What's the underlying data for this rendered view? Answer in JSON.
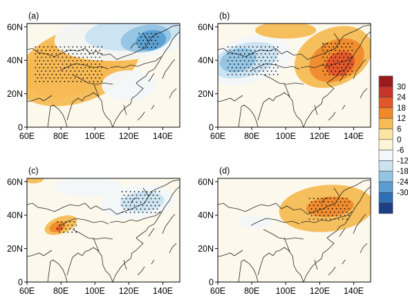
{
  "chart_data": {
    "type": "heatmap",
    "colorbar": {
      "labels": [
        "30",
        "24",
        "18",
        "12",
        "6",
        "0",
        "-6",
        "-12",
        "-18",
        "-24",
        "-30"
      ],
      "colors": [
        "#9a1a1e",
        "#c8332a",
        "#e2572a",
        "#ef8a2c",
        "#f6bc55",
        "#fce4a4",
        "#fdf5d8",
        "#f3f7f9",
        "#c9e3f1",
        "#92c4e3",
        "#5a9ed1",
        "#2f6fb8",
        "#1d3d85"
      ]
    },
    "panels": [
      {
        "label": "(a)",
        "xticks": [
          "60E",
          "80E",
          "100E",
          "120E",
          "140E"
        ],
        "yticks": [
          "0",
          "20N",
          "40N",
          "60N"
        ],
        "features": [
          {
            "v": 18,
            "lon": 82,
            "lat": 38,
            "rx": 23,
            "ry": 12,
            "rot": -20
          },
          {
            "v": 12,
            "lon": 88,
            "lat": 38,
            "rx": 31,
            "ry": 18,
            "rot": -20
          },
          {
            "v": 6,
            "lon": 90,
            "lat": 37,
            "rx": 38,
            "ry": 22,
            "rot": -20
          },
          {
            "v": -6,
            "lon": 118,
            "lat": 55,
            "rx": 42,
            "ry": 15,
            "rot": -5
          },
          {
            "v": -12,
            "lon": 122,
            "lat": 56,
            "rx": 28,
            "ry": 10,
            "rot": -5
          },
          {
            "v": -18,
            "lon": 130,
            "lat": 53,
            "rx": 15,
            "ry": 8,
            "rot": -10
          },
          {
            "v": -24,
            "lon": 133,
            "lat": 52,
            "rx": 9,
            "ry": 6,
            "rot": -10
          },
          {
            "v": -6,
            "lon": 120,
            "lat": 25,
            "rx": 16,
            "ry": 9,
            "rot": 0
          }
        ],
        "stipple": [
          {
            "lon0": 65,
            "lat0": 26,
            "lon1": 105,
            "lat1": 48
          },
          {
            "lon0": 126,
            "lat0": 46,
            "lon1": 138,
            "lat1": 56
          }
        ]
      },
      {
        "label": "(b)",
        "xticks": [
          "60E",
          "80E",
          "100E",
          "120E",
          "140E"
        ],
        "yticks": [
          "0",
          "20N",
          "40N",
          "60N"
        ],
        "features": [
          {
            "v": -6,
            "lon": 78,
            "lat": 40,
            "rx": 26,
            "ry": 14,
            "rot": -15
          },
          {
            "v": -12,
            "lon": 76,
            "lat": 40,
            "rx": 20,
            "ry": 10,
            "rot": -15
          },
          {
            "v": -18,
            "lon": 72,
            "lat": 40,
            "rx": 11,
            "ry": 7,
            "rot": -15
          },
          {
            "v": 6,
            "lon": 128,
            "lat": 42,
            "rx": 24,
            "ry": 17,
            "rot": -25
          },
          {
            "v": 12,
            "lon": 130,
            "lat": 40,
            "rx": 17,
            "ry": 12,
            "rot": -25
          },
          {
            "v": 18,
            "lon": 132,
            "lat": 38,
            "rx": 9,
            "ry": 7,
            "rot": -25
          },
          {
            "v": 6,
            "lon": 100,
            "lat": 58,
            "rx": 18,
            "ry": 5,
            "rot": 0
          }
        ],
        "stipple": [
          {
            "lon0": 66,
            "lat0": 30,
            "lon1": 96,
            "lat1": 48
          },
          {
            "lon0": 122,
            "lat0": 30,
            "lon1": 140,
            "lat1": 50
          }
        ]
      },
      {
        "label": "(c)",
        "xticks": [
          "60E",
          "80E",
          "100E",
          "120E",
          "140E"
        ],
        "yticks": [
          "0",
          "20N",
          "40N",
          "60N"
        ],
        "features": [
          {
            "v": -6,
            "lon": 125,
            "lat": 48,
            "rx": 22,
            "ry": 10,
            "rot": -5
          },
          {
            "v": -12,
            "lon": 128,
            "lat": 48,
            "rx": 13,
            "ry": 6,
            "rot": -5
          },
          {
            "v": 6,
            "lon": 80,
            "lat": 34,
            "rx": 10,
            "ry": 5,
            "rot": -20
          },
          {
            "v": 12,
            "lon": 78,
            "lat": 33,
            "rx": 5,
            "ry": 3,
            "rot": -20
          },
          {
            "v": 18,
            "lon": 79,
            "lat": 32,
            "rx": 2,
            "ry": 1.6,
            "rot": 0
          },
          {
            "v": -6,
            "lon": 96,
            "lat": 57,
            "rx": 20,
            "ry": 6,
            "rot": 0
          },
          {
            "v": 6,
            "lon": 64,
            "lat": 62,
            "rx": 6,
            "ry": 3,
            "rot": 0
          }
        ],
        "stipple": [
          {
            "lon0": 116,
            "lat0": 40,
            "lon1": 138,
            "lat1": 54
          },
          {
            "lon0": 78,
            "lat0": 29,
            "lon1": 90,
            "lat1": 36
          }
        ]
      },
      {
        "label": "(d)",
        "xticks": [
          "60E",
          "80E",
          "100E",
          "120E",
          "140E"
        ],
        "yticks": [
          "0",
          "20N",
          "40N",
          "60N"
        ],
        "features": [
          {
            "v": 6,
            "lon": 124,
            "lat": 44,
            "rx": 28,
            "ry": 14,
            "rot": -5
          },
          {
            "v": 12,
            "lon": 126,
            "lat": 45,
            "rx": 14,
            "ry": 6,
            "rot": -5
          },
          {
            "v": -6,
            "lon": 82,
            "lat": 36,
            "rx": 10,
            "ry": 4,
            "rot": 0
          }
        ],
        "stipple": [
          {
            "lon0": 114,
            "lat0": 36,
            "lon1": 138,
            "lat1": 50
          }
        ]
      }
    ]
  }
}
